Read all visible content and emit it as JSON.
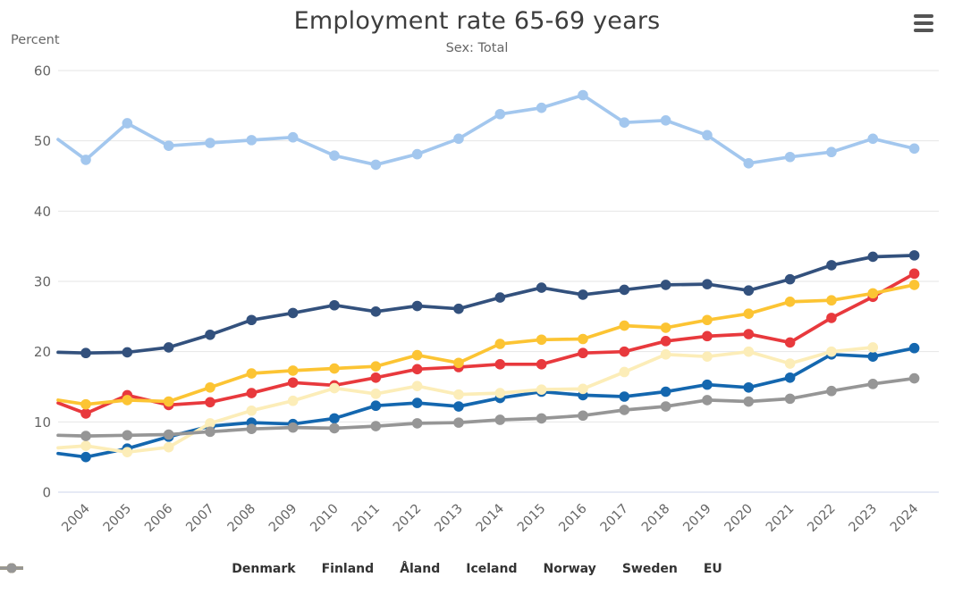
{
  "header": {
    "title": "Employment rate 65-69 years",
    "subtitle": "Sex: Total",
    "y_axis_title": "Percent",
    "menu_icon": "hamburger-menu-icon"
  },
  "chart_data": {
    "type": "line",
    "title": "Employment rate 65-69 years",
    "subtitle": "Sex: Total",
    "ylabel": "Percent",
    "xlabel": "",
    "ylim": [
      0,
      60
    ],
    "ytick_step": 10,
    "grid": true,
    "legend_position": "bottom",
    "x_label_rotation": -45,
    "axis_line_color": "#ccd6eb",
    "grid_color": "#e6e6e6",
    "categories": [
      "2004",
      "2005",
      "2006",
      "2007",
      "2008",
      "2009",
      "2010",
      "2011",
      "2012",
      "2013",
      "2014",
      "2015",
      "2016",
      "2017",
      "2018",
      "2019",
      "2020",
      "2021",
      "2022",
      "2023",
      "2024"
    ],
    "series": [
      {
        "name": "Denmark",
        "color": "#e8393d",
        "edge_value": 12.7,
        "values": [
          11.2,
          13.8,
          12.4,
          12.8,
          14.1,
          15.6,
          15.2,
          16.3,
          17.5,
          17.8,
          18.2,
          18.2,
          19.8,
          20.0,
          21.5,
          22.2,
          22.5,
          21.3,
          24.8,
          27.8,
          31.1
        ]
      },
      {
        "name": "Finland",
        "color": "#1467af",
        "edge_value": 5.5,
        "values": [
          5.0,
          6.2,
          7.9,
          9.4,
          9.9,
          9.7,
          10.5,
          12.3,
          12.7,
          12.2,
          13.4,
          14.3,
          13.8,
          13.6,
          14.3,
          15.3,
          14.9,
          16.3,
          19.6,
          19.3,
          20.5
        ]
      },
      {
        "name": "Åland",
        "color": "#fcedb8",
        "edge_value": 6.3,
        "values": [
          6.6,
          5.7,
          6.4,
          9.8,
          11.6,
          13.0,
          14.8,
          14.0,
          15.1,
          13.9,
          14.1,
          14.6,
          14.7,
          17.1,
          19.6,
          19.3,
          20.0,
          18.3,
          20.0,
          20.6,
          null
        ]
      },
      {
        "name": "Iceland",
        "color": "#a3c7ee",
        "edge_value": 50.2,
        "values": [
          47.3,
          52.5,
          49.3,
          49.7,
          50.1,
          50.5,
          47.9,
          46.6,
          48.1,
          50.3,
          53.8,
          54.7,
          56.5,
          52.6,
          52.9,
          50.8,
          46.8,
          47.7,
          48.4,
          50.3,
          48.9
        ]
      },
      {
        "name": "Norway",
        "color": "#33517d",
        "edge_value": 19.9,
        "values": [
          19.8,
          19.9,
          20.6,
          22.4,
          24.5,
          25.5,
          26.6,
          25.7,
          26.5,
          26.1,
          27.7,
          29.1,
          28.1,
          28.8,
          29.5,
          29.6,
          28.7,
          30.3,
          32.3,
          33.5,
          33.7
        ]
      },
      {
        "name": "Sweden",
        "color": "#fcc433",
        "edge_value": 13.1,
        "values": [
          12.5,
          13.1,
          12.9,
          14.9,
          16.9,
          17.3,
          17.6,
          17.9,
          19.5,
          18.4,
          21.1,
          21.7,
          21.8,
          23.7,
          23.4,
          24.5,
          25.4,
          27.1,
          27.3,
          28.3,
          29.5
        ]
      },
      {
        "name": "EU",
        "color": "#969696",
        "edge_value": 8.1,
        "values": [
          8.0,
          8.1,
          8.2,
          8.6,
          9.0,
          9.2,
          9.1,
          9.4,
          9.8,
          9.9,
          10.3,
          10.5,
          10.9,
          11.7,
          12.2,
          13.1,
          12.9,
          13.3,
          14.4,
          15.4,
          16.2
        ]
      }
    ]
  }
}
